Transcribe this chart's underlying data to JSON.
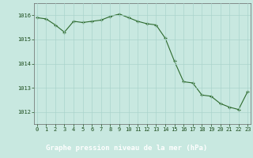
{
  "x": [
    0,
    1,
    2,
    3,
    4,
    5,
    6,
    7,
    8,
    9,
    10,
    11,
    12,
    13,
    14,
    15,
    16,
    17,
    18,
    19,
    20,
    21,
    22,
    23
  ],
  "y": [
    1015.9,
    1015.85,
    1015.6,
    1015.3,
    1015.75,
    1015.7,
    1015.75,
    1015.8,
    1015.95,
    1016.05,
    1015.9,
    1015.75,
    1015.65,
    1015.6,
    1015.05,
    1014.1,
    1013.25,
    1013.2,
    1012.7,
    1012.65,
    1012.35,
    1012.2,
    1012.1,
    1012.85
  ],
  "line_color": "#2d6a2d",
  "marker_color": "#2d6a2d",
  "bg_color": "#c8e8e0",
  "grid_color": "#aad4cc",
  "title_bar_color": "#2d6a2d",
  "title": "Graphe pression niveau de la mer (hPa)",
  "ylabel_ticks": [
    1012,
    1013,
    1014,
    1015,
    1016
  ],
  "xlabel_ticks": [
    0,
    1,
    2,
    3,
    4,
    5,
    6,
    7,
    8,
    9,
    10,
    11,
    12,
    13,
    14,
    15,
    16,
    17,
    18,
    19,
    20,
    21,
    22,
    23
  ],
  "ylim": [
    1011.5,
    1016.5
  ],
  "xlim": [
    -0.3,
    23.3
  ],
  "title_fontsize": 6.5,
  "tick_fontsize": 5.0,
  "title_color": "#ffffff",
  "tick_color": "#1a4a1a",
  "axis_color": "#666666"
}
